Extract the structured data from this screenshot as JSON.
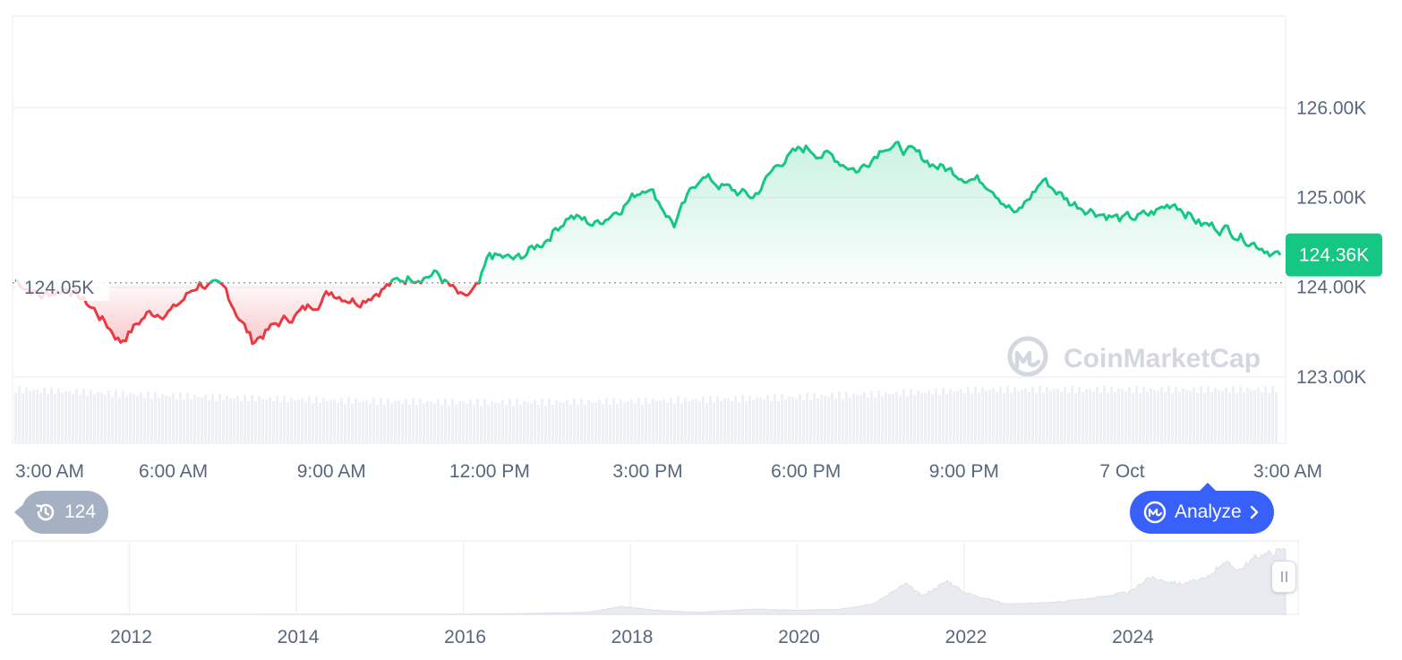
{
  "colors": {
    "up": "#16c784",
    "down": "#ea3943",
    "up_fill_top": "rgba(22,199,132,0.30)",
    "up_fill_bottom": "rgba(22,199,132,0.02)",
    "down_fill_top": "rgba(234,57,67,0.02)",
    "down_fill_bottom": "rgba(234,57,67,0.28)",
    "grid": "#eff2f5",
    "axis_text": "#58667e",
    "volume": "#eef0f4",
    "navigator_fill": "#e8ebf0",
    "accent": "#3861fb",
    "history_pill": "#a6b0c3",
    "watermark": "#c7ccd6"
  },
  "chart_data": [
    {
      "type": "line",
      "title": "",
      "xlabel": "",
      "ylabel": "",
      "x_tick_labels": [
        "3:00 AM",
        "6:00 AM",
        "9:00 AM",
        "12:00 PM",
        "3:00 PM",
        "6:00 PM",
        "9:00 PM",
        "7 Oct",
        "3:00 AM"
      ],
      "x_tick_hours": [
        3,
        6,
        9,
        12,
        15,
        18,
        21,
        24,
        27
      ],
      "x_range_hours": [
        2.95,
        27.1
      ],
      "y_tick_labels": [
        "123.00K",
        "124.00K",
        "125.00K",
        "126.00K"
      ],
      "y_tick_values": [
        123000,
        124000,
        125000,
        126000
      ],
      "ylim": [
        122990,
        127020
      ],
      "grid": true,
      "baseline": {
        "value": 124050,
        "label": "124.05K"
      },
      "current_price": {
        "value": 124360,
        "label": "124.36K"
      },
      "series": [
        {
          "x": [
            3.0,
            3.5,
            4.0,
            4.5,
            5.0,
            5.5,
            6.0,
            6.5,
            7.0,
            7.5,
            8.0,
            8.5,
            9.0,
            9.5,
            10.0,
            10.5,
            11.0,
            11.5,
            11.8,
            12.0,
            12.5,
            13.0,
            13.5,
            14.0,
            14.5,
            15.0,
            15.5,
            16.0,
            16.5,
            17.0,
            17.5,
            18.0,
            18.5,
            19.0,
            19.5,
            20.0,
            20.5,
            21.0,
            21.5,
            22.0,
            22.5,
            23.0,
            23.5,
            24.0,
            24.5,
            25.0,
            25.5,
            26.0,
            26.5,
            27.0
          ],
          "y": [
            124080,
            123900,
            124000,
            123750,
            123400,
            123700,
            123750,
            124050,
            123950,
            123400,
            123600,
            123750,
            123950,
            123850,
            124000,
            124120,
            124150,
            123850,
            124000,
            124350,
            124300,
            124500,
            124800,
            124700,
            124900,
            125150,
            124700,
            125250,
            125100,
            125000,
            125400,
            125550,
            125450,
            125300,
            125600,
            125500,
            125350,
            125250,
            125150,
            124800,
            125200,
            124950,
            124850,
            124750,
            124800,
            124950,
            124700,
            124650,
            124500,
            124360
          ]
        }
      ]
    },
    {
      "type": "area",
      "title": "",
      "x_tick_labels": [
        "2012",
        "2014",
        "2016",
        "2018",
        "2020",
        "2022",
        "2024"
      ],
      "x_tick_years": [
        2012,
        2014,
        2016,
        2018,
        2020,
        2022,
        2024
      ],
      "x_range_years": [
        2010.6,
        2025.85
      ],
      "ylim": [
        0,
        126000
      ],
      "series": [
        {
          "x": [
            2010.6,
            2013.0,
            2015.0,
            2016.5,
            2017.5,
            2017.9,
            2018.3,
            2018.8,
            2019.5,
            2020.0,
            2020.5,
            2020.9,
            2021.3,
            2021.5,
            2021.8,
            2022.0,
            2022.5,
            2023.0,
            2023.5,
            2024.0,
            2024.2,
            2024.6,
            2024.9,
            2025.1,
            2025.3,
            2025.5,
            2025.85
          ],
          "y": [
            0,
            0,
            300,
            900,
            4000,
            15000,
            8000,
            3700,
            10000,
            7500,
            10000,
            19000,
            58000,
            35000,
            64000,
            42000,
            20000,
            22000,
            30000,
            43000,
            70000,
            58000,
            68000,
            100000,
            85000,
            110000,
            124000
          ]
        }
      ]
    }
  ],
  "ui": {
    "history_count": "124",
    "analyze_label": "Analyze",
    "watermark_text": "CoinMarketCap",
    "watermark_icon": "coinmarketcap-logo-icon",
    "history_icon": "history-clock-icon",
    "analyze_icon": "coinmarketcap-ai-icon",
    "analyze_chevron": "chevron-right-icon",
    "navigator_handle_icon": "drag-handle-icon"
  }
}
